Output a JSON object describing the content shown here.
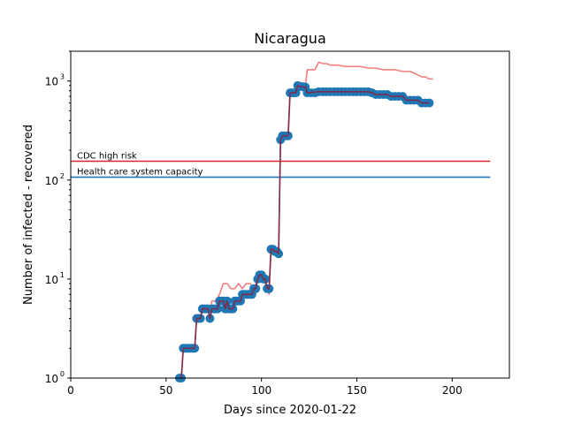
{
  "chart_data": {
    "type": "line",
    "title": "Nicaragua",
    "xlabel": "Days since 2020-01-22",
    "ylabel": "Number of infected - recovered",
    "xlim": [
      0,
      230
    ],
    "ylim": [
      1,
      2000
    ],
    "y_scale": "log",
    "grid": false,
    "x_ticks": [
      0,
      50,
      100,
      150,
      200
    ],
    "x_tick_labels": [
      "0",
      "50",
      "100",
      "150",
      "200"
    ],
    "y_ticks": [
      1,
      10,
      100,
      1000
    ],
    "y_tick_labels": [
      "10",
      "10",
      "10",
      "10"
    ],
    "y_tick_exponents": [
      "0",
      "1",
      "2",
      "3"
    ],
    "reference_lines": [
      {
        "label": "CDC high risk",
        "value": 155,
        "x_range": [
          0,
          220
        ],
        "color": "#d62728",
        "label_color": "#d62728"
      },
      {
        "label": "Health care system capacity",
        "value": 107,
        "x_range": [
          0,
          220
        ],
        "color": "#1f77b4",
        "label_color": "#000000"
      }
    ],
    "series": [
      {
        "style": "markers",
        "color": "#1f77b4",
        "points": [
          [
            57,
            1
          ],
          [
            58,
            1
          ],
          [
            59,
            2
          ],
          [
            60,
            2
          ],
          [
            61,
            2
          ],
          [
            62,
            2
          ],
          [
            63,
            2
          ],
          [
            64,
            2
          ],
          [
            65,
            2
          ],
          [
            66,
            4
          ],
          [
            67,
            4
          ],
          [
            68,
            4
          ],
          [
            69,
            5
          ],
          [
            70,
            5
          ],
          [
            71,
            5
          ],
          [
            72,
            5
          ],
          [
            73,
            4
          ],
          [
            74,
            5
          ],
          [
            75,
            5
          ],
          [
            76,
            5
          ],
          [
            77,
            5
          ],
          [
            78,
            6
          ],
          [
            79,
            6
          ],
          [
            80,
            6
          ],
          [
            81,
            5
          ],
          [
            82,
            6
          ],
          [
            83,
            5
          ],
          [
            84,
            5
          ],
          [
            85,
            5
          ],
          [
            86,
            6
          ],
          [
            87,
            6
          ],
          [
            88,
            6
          ],
          [
            89,
            6
          ],
          [
            90,
            7
          ],
          [
            91,
            7
          ],
          [
            92,
            7
          ],
          [
            93,
            7
          ],
          [
            94,
            7
          ],
          [
            95,
            7
          ],
          [
            96,
            8
          ],
          [
            97,
            8
          ],
          [
            98,
            10
          ],
          [
            99,
            11
          ],
          [
            100,
            11
          ],
          [
            101,
            10
          ],
          [
            102,
            10
          ],
          [
            103,
            8
          ],
          [
            104,
            8
          ],
          [
            105,
            20
          ],
          [
            106,
            20
          ],
          [
            107,
            19
          ],
          [
            108,
            19
          ],
          [
            109,
            18
          ],
          [
            110,
            255
          ],
          [
            111,
            280
          ],
          [
            112,
            280
          ],
          [
            113,
            280
          ],
          [
            114,
            280
          ],
          [
            115,
            760
          ],
          [
            116,
            760
          ],
          [
            117,
            760
          ],
          [
            118,
            760
          ],
          [
            119,
            900
          ],
          [
            120,
            880
          ],
          [
            121,
            880
          ],
          [
            122,
            870
          ],
          [
            123,
            870
          ],
          [
            124,
            760
          ],
          [
            126,
            760
          ],
          [
            128,
            760
          ],
          [
            130,
            780
          ],
          [
            132,
            780
          ],
          [
            134,
            780
          ],
          [
            136,
            780
          ],
          [
            138,
            780
          ],
          [
            140,
            780
          ],
          [
            142,
            780
          ],
          [
            144,
            780
          ],
          [
            146,
            780
          ],
          [
            148,
            780
          ],
          [
            150,
            780
          ],
          [
            152,
            780
          ],
          [
            154,
            780
          ],
          [
            156,
            780
          ],
          [
            158,
            760
          ],
          [
            160,
            730
          ],
          [
            162,
            730
          ],
          [
            164,
            730
          ],
          [
            166,
            730
          ],
          [
            168,
            700
          ],
          [
            170,
            700
          ],
          [
            172,
            700
          ],
          [
            174,
            700
          ],
          [
            176,
            640
          ],
          [
            178,
            640
          ],
          [
            180,
            640
          ],
          [
            182,
            640
          ],
          [
            184,
            600
          ],
          [
            186,
            600
          ],
          [
            188,
            600
          ]
        ]
      },
      {
        "style": "line",
        "color": "#7b2d4e",
        "points": [
          [
            57,
            1
          ],
          [
            58,
            1
          ],
          [
            59,
            2
          ],
          [
            65,
            2
          ],
          [
            66,
            4
          ],
          [
            68,
            4
          ],
          [
            69,
            5
          ],
          [
            72,
            5
          ],
          [
            73,
            4
          ],
          [
            74,
            5
          ],
          [
            77,
            5
          ],
          [
            78,
            6
          ],
          [
            80,
            6
          ],
          [
            81,
            5
          ],
          [
            82,
            6
          ],
          [
            83,
            5
          ],
          [
            85,
            5
          ],
          [
            86,
            6
          ],
          [
            89,
            6
          ],
          [
            90,
            7
          ],
          [
            95,
            7
          ],
          [
            96,
            8
          ],
          [
            97,
            8
          ],
          [
            98,
            10
          ],
          [
            99,
            11
          ],
          [
            100,
            11
          ],
          [
            101,
            10
          ],
          [
            102,
            10
          ],
          [
            103,
            8
          ],
          [
            104,
            8
          ],
          [
            105,
            20
          ],
          [
            106,
            20
          ],
          [
            107,
            19
          ],
          [
            108,
            19
          ],
          [
            109,
            18
          ],
          [
            110,
            255
          ],
          [
            111,
            280
          ],
          [
            114,
            280
          ],
          [
            115,
            760
          ],
          [
            118,
            760
          ],
          [
            119,
            900
          ],
          [
            120,
            880
          ],
          [
            123,
            870
          ],
          [
            124,
            760
          ],
          [
            130,
            780
          ],
          [
            156,
            780
          ],
          [
            158,
            760
          ],
          [
            160,
            730
          ],
          [
            166,
            730
          ],
          [
            168,
            700
          ],
          [
            174,
            700
          ],
          [
            176,
            640
          ],
          [
            182,
            640
          ],
          [
            184,
            600
          ],
          [
            188,
            600
          ]
        ]
      },
      {
        "style": "line",
        "color": "#f08080",
        "points": [
          [
            57,
            1
          ],
          [
            58,
            1
          ],
          [
            59,
            2
          ],
          [
            65,
            2
          ],
          [
            66,
            4
          ],
          [
            68,
            4
          ],
          [
            69,
            5
          ],
          [
            72,
            5
          ],
          [
            73,
            5
          ],
          [
            74,
            6
          ],
          [
            76,
            6
          ],
          [
            78,
            7
          ],
          [
            80,
            9
          ],
          [
            82,
            9
          ],
          [
            84,
            8
          ],
          [
            86,
            8
          ],
          [
            88,
            9
          ],
          [
            90,
            8
          ],
          [
            92,
            9
          ],
          [
            94,
            9
          ],
          [
            96,
            8
          ],
          [
            98,
            10
          ],
          [
            100,
            11
          ],
          [
            102,
            9
          ],
          [
            104,
            7
          ],
          [
            105,
            20
          ],
          [
            109,
            19
          ],
          [
            110,
            260
          ],
          [
            112,
            280
          ],
          [
            114,
            280
          ],
          [
            115,
            770
          ],
          [
            118,
            770
          ],
          [
            119,
            920
          ],
          [
            121,
            900
          ],
          [
            123,
            890
          ],
          [
            124,
            1300
          ],
          [
            128,
            1300
          ],
          [
            130,
            1550
          ],
          [
            132,
            1500
          ],
          [
            134,
            1500
          ],
          [
            136,
            1450
          ],
          [
            140,
            1450
          ],
          [
            144,
            1400
          ],
          [
            148,
            1400
          ],
          [
            152,
            1400
          ],
          [
            156,
            1350
          ],
          [
            160,
            1350
          ],
          [
            164,
            1300
          ],
          [
            170,
            1300
          ],
          [
            174,
            1250
          ],
          [
            178,
            1250
          ],
          [
            182,
            1150
          ],
          [
            184,
            1100
          ],
          [
            186,
            1100
          ],
          [
            188,
            1050
          ],
          [
            190,
            1050
          ]
        ]
      }
    ]
  }
}
